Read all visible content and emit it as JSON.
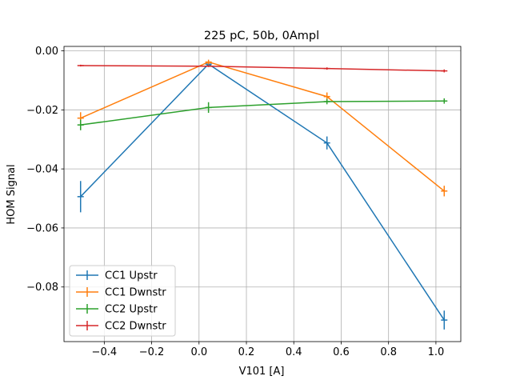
{
  "chart_data": {
    "type": "line",
    "title": "225 pC, 50b, 0Ampl",
    "xlabel": "V101 [A]",
    "ylabel": "HOM Signal",
    "xlim": [
      -0.57,
      1.105
    ],
    "ylim": [
      -0.0985,
      0.0015
    ],
    "xticks": [
      -0.4,
      -0.2,
      0.0,
      0.2,
      0.4,
      0.6,
      0.8,
      1.0
    ],
    "xtick_labels": [
      "−0.4",
      "−0.2",
      "0.0",
      "0.2",
      "0.4",
      "0.6",
      "0.8",
      "1.0"
    ],
    "yticks": [
      0.0,
      -0.02,
      -0.04,
      -0.06,
      -0.08
    ],
    "ytick_labels": [
      "0.00",
      "−0.02",
      "−0.04",
      "−0.06",
      "−0.08"
    ],
    "grid": true,
    "legend_position": "lower-left",
    "x": [
      -0.5,
      0.04,
      0.54,
      1.035
    ],
    "series": [
      {
        "name": "CC1 Upstr",
        "color": "#1f77b4",
        "y": [
          -0.0494,
          -0.0045,
          -0.0312,
          -0.0912
        ],
        "err": [
          0.0053,
          0.0008,
          0.0022,
          0.0032
        ]
      },
      {
        "name": "CC1 Dwnstr",
        "color": "#ff7f0e",
        "y": [
          -0.0228,
          -0.0038,
          -0.0155,
          -0.0475
        ],
        "err": [
          0.002,
          0.0008,
          0.0014,
          0.0018
        ]
      },
      {
        "name": "CC2 Upstr",
        "color": "#2ca02c",
        "y": [
          -0.0251,
          -0.0192,
          -0.0172,
          -0.017
        ],
        "err": [
          0.0018,
          0.0018,
          0.0009,
          0.0009
        ]
      },
      {
        "name": "CC2 Dwnstr",
        "color": "#d62728",
        "y": [
          -0.005,
          -0.0052,
          -0.006,
          -0.0068
        ],
        "err": [
          0.0003,
          0.0003,
          0.0004,
          0.0005
        ]
      }
    ]
  }
}
